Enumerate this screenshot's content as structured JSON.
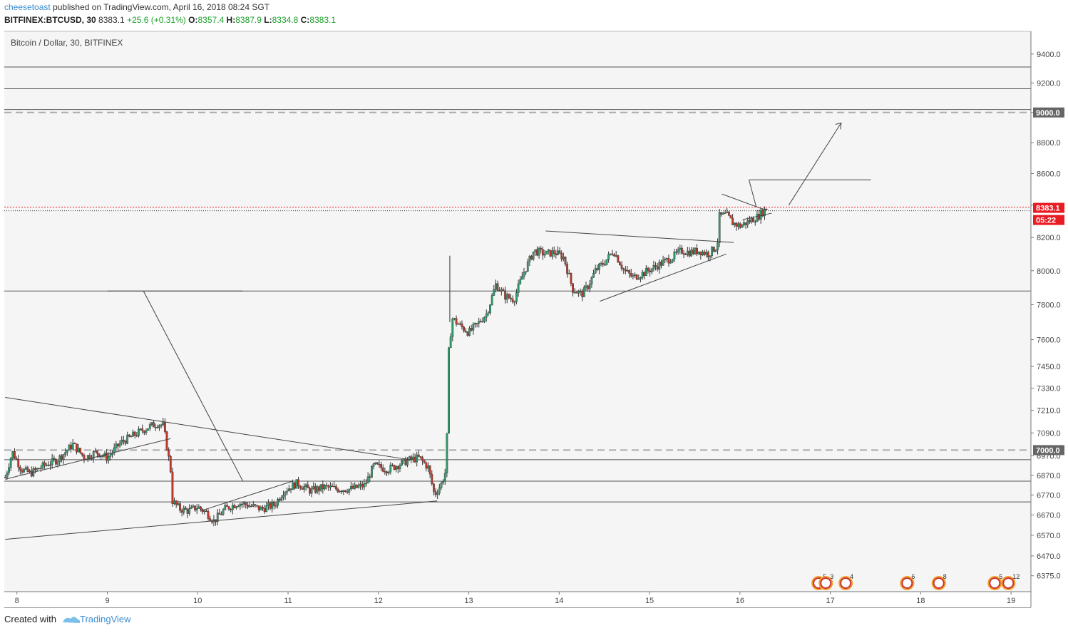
{
  "header": {
    "author": "cheesetoast",
    "published": "published on TradingView.com, April 16, 2018 08:24 SGT",
    "symbol": "BITFINEX:BTCUSD, 30",
    "last": "8383.1",
    "change": "+25.6 (+0.31%)",
    "o_label": "O:",
    "o_val": "8357.4",
    "h_label": "H:",
    "h_val": "8387.9",
    "l_label": "L:",
    "l_val": "8334.8",
    "c_label": "C:",
    "c_val": "8383.1"
  },
  "footer": {
    "created": "Created with",
    "brand": "TradingView"
  },
  "chart_data": {
    "type": "line",
    "title": "Bitcoin / Dollar, 30, BITFINEX",
    "y_scale": "log",
    "ylim": [
      6300,
      9560
    ],
    "xlim": [
      7.86,
      19.22
    ],
    "x_ticks": [
      "8",
      "9",
      "10",
      "11",
      "12",
      "13",
      "14",
      "15",
      "16",
      "17",
      "18",
      "19"
    ],
    "y_ticks": [
      "9400.0",
      "9200.0",
      "9000.0",
      "8800.0",
      "8600.0",
      "8400.0",
      "8200.0",
      "8000.0",
      "7800.0",
      "7600.0",
      "7450.0",
      "7330.0",
      "7210.0",
      "7090.0",
      "6970.0",
      "6870.0",
      "6770.0",
      "6670.0",
      "6570.0",
      "6470.0",
      "6375.0"
    ],
    "last_price": "8383.1",
    "countdown": "05:22",
    "level_tags": [
      "9000.0",
      "7000.0"
    ],
    "price_path": [
      [
        7.87,
        6860
      ],
      [
        7.95,
        6990
      ],
      [
        8.05,
        6900
      ],
      [
        8.15,
        6880
      ],
      [
        8.3,
        6920
      ],
      [
        8.45,
        6950
      ],
      [
        8.62,
        7030
      ],
      [
        8.75,
        6960
      ],
      [
        8.88,
        6990
      ],
      [
        9.0,
        6960
      ],
      [
        9.15,
        7040
      ],
      [
        9.3,
        7080
      ],
      [
        9.45,
        7120
      ],
      [
        9.55,
        7140
      ],
      [
        9.62,
        7130
      ],
      [
        9.7,
        6900
      ],
      [
        9.72,
        6740
      ],
      [
        9.8,
        6700
      ],
      [
        9.9,
        6690
      ],
      [
        10.0,
        6710
      ],
      [
        10.1,
        6680
      ],
      [
        10.18,
        6640
      ],
      [
        10.3,
        6700
      ],
      [
        10.45,
        6730
      ],
      [
        10.55,
        6720
      ],
      [
        10.7,
        6700
      ],
      [
        10.85,
        6720
      ],
      [
        10.95,
        6790
      ],
      [
        11.1,
        6830
      ],
      [
        11.25,
        6790
      ],
      [
        11.4,
        6810
      ],
      [
        11.55,
        6800
      ],
      [
        11.7,
        6800
      ],
      [
        11.85,
        6820
      ],
      [
        11.95,
        6920
      ],
      [
        12.1,
        6900
      ],
      [
        12.25,
        6930
      ],
      [
        12.35,
        6950
      ],
      [
        12.45,
        6960
      ],
      [
        12.55,
        6910
      ],
      [
        12.62,
        6770
      ],
      [
        12.7,
        6830
      ],
      [
        12.75,
        6900
      ],
      [
        12.78,
        7560
      ],
      [
        12.82,
        7720
      ],
      [
        12.9,
        7680
      ],
      [
        13.0,
        7640
      ],
      [
        13.1,
        7690
      ],
      [
        13.2,
        7750
      ],
      [
        13.3,
        7920
      ],
      [
        13.4,
        7850
      ],
      [
        13.5,
        7830
      ],
      [
        13.6,
        7980
      ],
      [
        13.72,
        8120
      ],
      [
        13.85,
        8100
      ],
      [
        13.95,
        8110
      ],
      [
        14.05,
        8080
      ],
      [
        14.15,
        7890
      ],
      [
        14.25,
        7860
      ],
      [
        14.32,
        7910
      ],
      [
        14.4,
        8000
      ],
      [
        14.5,
        8050
      ],
      [
        14.6,
        8120
      ],
      [
        14.72,
        8000
      ],
      [
        14.82,
        7960
      ],
      [
        14.95,
        7990
      ],
      [
        15.05,
        8020
      ],
      [
        15.15,
        8050
      ],
      [
        15.25,
        8080
      ],
      [
        15.35,
        8120
      ],
      [
        15.45,
        8110
      ],
      [
        15.55,
        8120
      ],
      [
        15.65,
        8100
      ],
      [
        15.75,
        8150
      ],
      [
        15.77,
        8330
      ],
      [
        15.85,
        8340
      ],
      [
        15.92,
        8290
      ],
      [
        16.0,
        8270
      ],
      [
        16.1,
        8300
      ],
      [
        16.2,
        8330
      ],
      [
        16.3,
        8383.1
      ]
    ],
    "events": [
      {
        "x": 16.87,
        "label": "5"
      },
      {
        "x": 16.95,
        "label": "3"
      },
      {
        "x": 17.17,
        "label": "4"
      },
      {
        "x": 17.85,
        "label": "6"
      },
      {
        "x": 18.2,
        "label": "8"
      },
      {
        "x": 18.82,
        "label": "5"
      },
      {
        "x": 18.97,
        "label": "12"
      }
    ],
    "colors": {
      "up": "#2e9e6e",
      "down": "#c0392b",
      "drawing": "#444444",
      "price_tag": "#e91c24",
      "level_tag": "#666666"
    }
  }
}
